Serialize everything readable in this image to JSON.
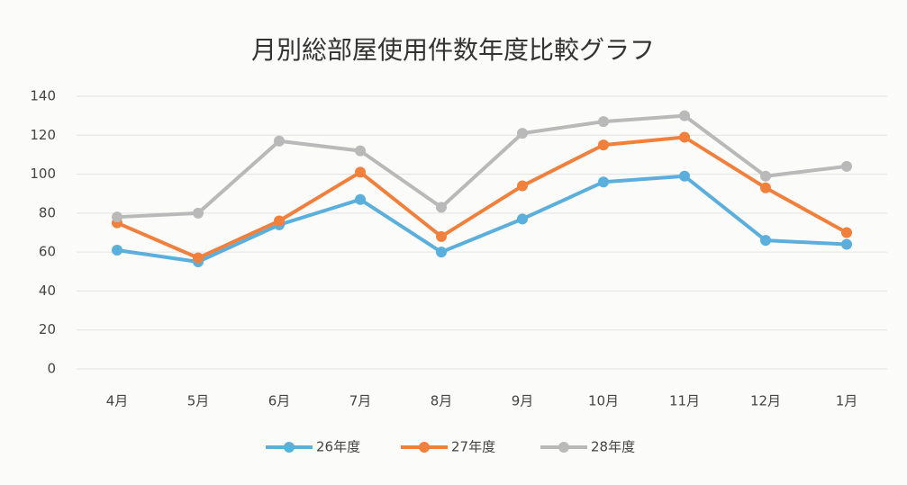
{
  "chart_data": {
    "type": "line",
    "title": "月別総部屋使用件数年度比較グラフ",
    "categories": [
      "4月",
      "5月",
      "6月",
      "7月",
      "8月",
      "9月",
      "10月",
      "11月",
      "12月",
      "1月"
    ],
    "series": [
      {
        "name": "26年度",
        "color": "#5aafdc",
        "values": [
          61,
          55,
          74,
          87,
          60,
          77,
          96,
          99,
          66,
          64
        ]
      },
      {
        "name": "27年度",
        "color": "#f0803c",
        "values": [
          75,
          57,
          76,
          101,
          68,
          94,
          115,
          119,
          93,
          70
        ]
      },
      {
        "name": "28年度",
        "color": "#b9b9b9",
        "values": [
          78,
          80,
          117,
          112,
          83,
          121,
          127,
          130,
          99,
          104
        ]
      }
    ],
    "ylim": [
      0,
      140
    ],
    "yticks": [
      0,
      20,
      40,
      60,
      80,
      100,
      120,
      140
    ],
    "grid": true,
    "legend": "bottom"
  }
}
